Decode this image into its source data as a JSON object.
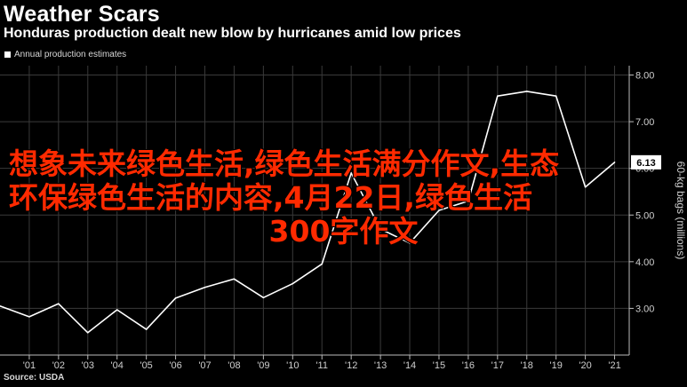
{
  "header": {
    "title": "Weather Scars",
    "subtitle": "Honduras production dealt new blow by hurricanes amid low prices",
    "legend_label": "Annual production estimates"
  },
  "source": "Source: USDA",
  "overlay": {
    "line1": "想象未来绿色生活,绿色生活满分作文,生态",
    "line2": "环保绿色生活的内容,4月22日,绿色生活",
    "line3": "300字作文"
  },
  "colors": {
    "line": "#ffffff",
    "grid": "#3a3a3a",
    "overlay_text": "#ff2a00",
    "background": "#000000"
  },
  "chart_data": {
    "type": "line",
    "title": "Weather Scars",
    "subtitle": "Honduras production dealt new blow by hurricanes amid low prices",
    "ylabel": "60-kg bags (millions)",
    "ylim": [
      2.0,
      8.2
    ],
    "yticks": [
      3.0,
      4.0,
      5.0,
      6.0,
      7.0,
      8.0
    ],
    "ytick_labels": [
      "3.00",
      "4.00",
      "5.00",
      "6.00",
      "7.00",
      "8.00"
    ],
    "xticks": [
      "'01",
      "'02",
      "'03",
      "'04",
      "'05",
      "'06",
      "'07",
      "'08",
      "'09",
      "'10",
      "'11",
      "'12",
      "'13",
      "'14",
      "'15",
      "'16",
      "'17",
      "'18",
      "'19",
      "'20",
      "'21"
    ],
    "last_value_label": "6.13",
    "grid": true,
    "series": [
      {
        "name": "Annual production estimates",
        "x": [
          2000,
          2001,
          2002,
          2003,
          2004,
          2005,
          2006,
          2007,
          2008,
          2009,
          2010,
          2011,
          2012,
          2013,
          2014,
          2015,
          2016,
          2017,
          2018,
          2019,
          2020,
          2021
        ],
        "values": [
          3.05,
          2.82,
          3.1,
          2.48,
          2.97,
          2.55,
          3.22,
          3.45,
          3.63,
          3.23,
          3.53,
          3.95,
          5.9,
          4.7,
          4.4,
          5.1,
          5.3,
          7.55,
          7.65,
          7.55,
          5.6,
          6.13
        ]
      }
    ]
  }
}
